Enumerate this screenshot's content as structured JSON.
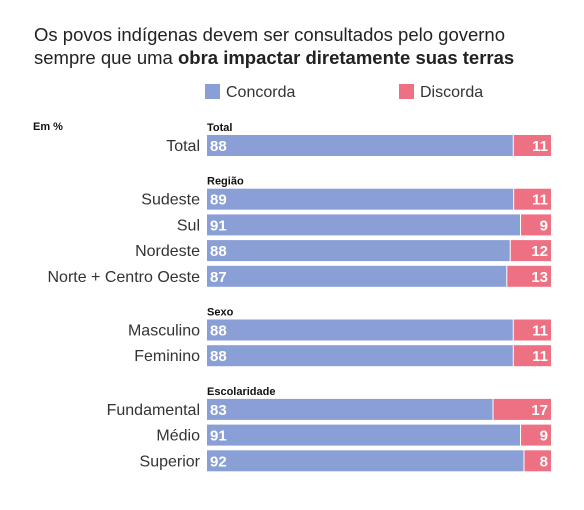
{
  "chart_data": {
    "type": "bar",
    "orientation": "horizontal",
    "stacked": true,
    "title_line1": "Os povos indígenas devem ser consultados pelo governo",
    "title_line2_prefix": "sempre que uma ",
    "title_line2_bold": "obra impactar diretamente suas terras",
    "unit_label": "Em %",
    "legend_position": "top",
    "series": [
      {
        "name": "Concorda",
        "color": "#8a9fd6"
      },
      {
        "name": "Discorda",
        "color": "#ee7183"
      }
    ],
    "groups": [
      {
        "label": "Total",
        "rows": [
          {
            "label": "Total",
            "concorda": 88,
            "discorda": 11
          }
        ]
      },
      {
        "label": "Região",
        "rows": [
          {
            "label": "Sudeste",
            "concorda": 89,
            "discorda": 11
          },
          {
            "label": "Sul",
            "concorda": 91,
            "discorda": 9
          },
          {
            "label": "Nordeste",
            "concorda": 88,
            "discorda": 12
          },
          {
            "label": "Norte + Centro Oeste",
            "concorda": 87,
            "discorda": 13
          }
        ]
      },
      {
        "label": "Sexo",
        "rows": [
          {
            "label": "Masculino",
            "concorda": 88,
            "discorda": 11
          },
          {
            "label": "Feminino",
            "concorda": 88,
            "discorda": 11
          }
        ]
      },
      {
        "label": "Escolaridade",
        "rows": [
          {
            "label": "Fundamental",
            "concorda": 83,
            "discorda": 17
          },
          {
            "label": "Médio",
            "concorda": 91,
            "discorda": 9
          },
          {
            "label": "Superior",
            "concorda": 92,
            "discorda": 8
          }
        ]
      }
    ]
  }
}
